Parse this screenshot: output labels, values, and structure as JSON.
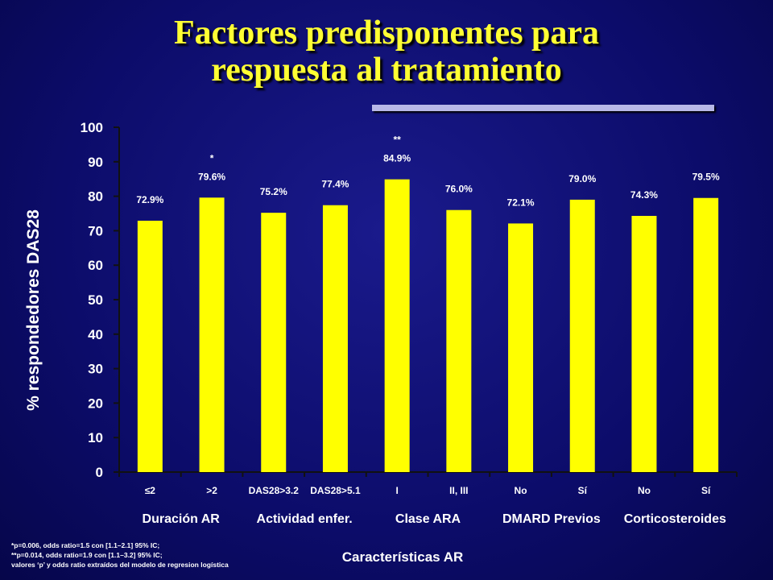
{
  "title": {
    "line1": "Factores predisponentes para",
    "line2": "respuesta al tratamiento"
  },
  "chart_data": {
    "type": "bar",
    "ylabel": "% respondedores DAS28",
    "xlabel": "Características AR",
    "ylim": [
      0,
      100
    ],
    "yticks": [
      0,
      10,
      20,
      30,
      40,
      50,
      60,
      70,
      80,
      90,
      100
    ],
    "categories": [
      "≤2",
      ">2",
      "DAS28>3.2",
      "DAS28>5.1",
      "I",
      "II, III",
      "No",
      "Sí",
      "No",
      "Sí"
    ],
    "values": [
      72.9,
      79.6,
      75.2,
      77.4,
      84.9,
      76.0,
      72.1,
      79.0,
      74.3,
      79.5
    ],
    "value_labels": [
      "72.9%",
      "79.6%",
      "75.2%",
      "77.4%",
      "84.9%",
      "76.0%",
      "72.1%",
      "79.0%",
      "74.3%",
      "79.5%"
    ],
    "significance": [
      "",
      "*",
      "",
      "",
      "**",
      "",
      "",
      "",
      "",
      ""
    ],
    "bar_color": "#ffff00",
    "groups": [
      "Duración AR",
      "Actividad enfer.",
      "Clase ARA",
      "DMARD Previos",
      "Corticosteroides"
    ]
  },
  "footnotes": [
    "*p=0.006, odds ratio=1.5 con [1.1–2.1] 95% IC;",
    "**p=0.014, odds ratio=1.9 con [1.1–3.2] 95% IC;",
    "valores ‘p’  y odds ratio extraídos del modelo de regresion logística"
  ]
}
